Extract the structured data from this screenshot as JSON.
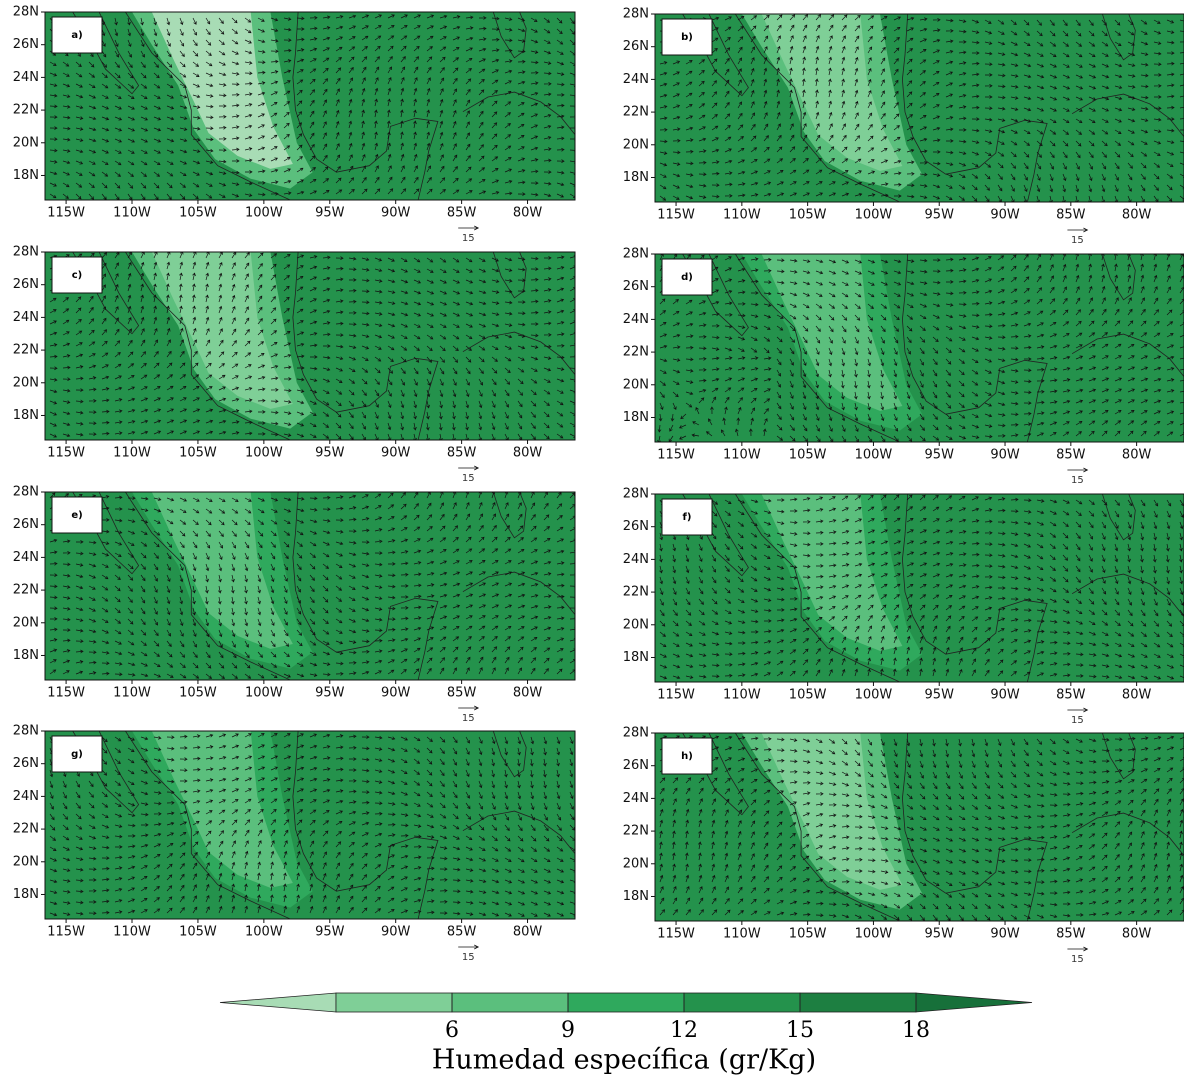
{
  "panels": [
    {
      "label": "a)"
    },
    {
      "label": "b)"
    },
    {
      "label": "c)"
    },
    {
      "label": "d)"
    },
    {
      "label": "e)"
    },
    {
      "label": "f)"
    },
    {
      "label": "g)"
    },
    {
      "label": "h)"
    }
  ],
  "lonlim": [
    -116.6,
    -76.4
  ],
  "latlim": [
    16.5,
    28
  ],
  "lon_ticks": [
    {
      "value": -115,
      "label": "115W"
    },
    {
      "value": -110,
      "label": "110W"
    },
    {
      "value": -105,
      "label": "105W"
    },
    {
      "value": -100,
      "label": "100W"
    },
    {
      "value": -95,
      "label": "95W"
    },
    {
      "value": -90,
      "label": "90W"
    },
    {
      "value": -85,
      "label": "85W"
    },
    {
      "value": -80,
      "label": "80W"
    }
  ],
  "lat_ticks": [
    {
      "value": 18,
      "label": "18N"
    },
    {
      "value": 20,
      "label": "20N"
    },
    {
      "value": 22,
      "label": "22N"
    },
    {
      "value": 24,
      "label": "24N"
    },
    {
      "value": 26,
      "label": "26N"
    },
    {
      "value": 28,
      "label": "28N"
    }
  ],
  "reference_vector": "15",
  "colorbar": {
    "ticks": [
      6,
      9,
      12,
      15,
      18
    ],
    "colors": [
      "#a8dcb5",
      "#7fcf97",
      "#5bbf7d",
      "#2fa95d",
      "#24924c",
      "#1d7f41",
      "#17703a"
    ],
    "label": "Humedad específica (gr/Kg)"
  }
}
